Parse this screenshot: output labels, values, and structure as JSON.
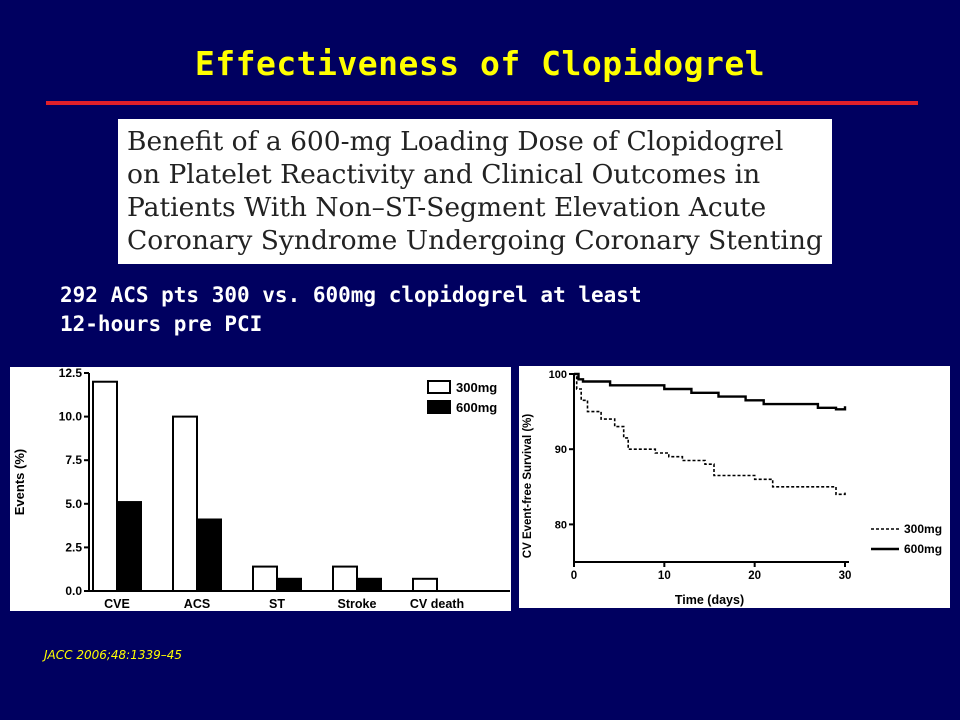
{
  "slide": {
    "title": "Effectiveness of Clopidogrel",
    "article_title_lines": [
      "Benefit of a 600-mg Loading Dose of Clopidogrel",
      "on Platelet Reactivity and Clinical Outcomes in",
      "Patients With Non–ST-Segment Elevation Acute",
      "Coronary Syndrome Undergoing Coronary Stenting"
    ],
    "subtitle_lines": [
      "292 ACS pts 300 vs. 600mg clopidogrel at least",
      "12-hours pre PCI"
    ],
    "citation": "JACC 2006;48:1339–45",
    "colors": {
      "background": "#000060",
      "title": "#FFFF00",
      "rule": "#E0202A",
      "text": "#FFFFFF"
    }
  },
  "chart_data": [
    {
      "type": "bar",
      "title": "",
      "xlabel": "",
      "ylabel": "Events (%)",
      "categories": [
        "CVE",
        "ACS",
        "ST",
        "Stroke",
        "CV death"
      ],
      "series": [
        {
          "name": "300mg",
          "values": [
            12.0,
            10.0,
            1.4,
            1.4,
            0.7
          ],
          "fill": "#FFFFFF"
        },
        {
          "name": "600mg",
          "values": [
            5.1,
            4.1,
            0.7,
            0.7,
            0.0
          ],
          "fill": "#000000"
        }
      ],
      "ylim": [
        0,
        12.5
      ],
      "yticks": [
        "0.0",
        "2.5",
        "5.0",
        "7.5",
        "10.0",
        "12.5"
      ],
      "legend": "top-right",
      "grid": false
    },
    {
      "type": "line",
      "title": "",
      "xlabel": "Time (days)",
      "ylabel": "CV Event-free Survival (%)",
      "xlim": [
        0,
        30
      ],
      "ylim": [
        75,
        100
      ],
      "xticks": [
        "0",
        "10",
        "20",
        "30"
      ],
      "yticks": [
        "80",
        "90",
        "100"
      ],
      "series": [
        {
          "name": "300mg",
          "style": "dashed",
          "step": true,
          "x": [
            0,
            0.3,
            0.8,
            1.5,
            3,
            4.5,
            5.5,
            6,
            9,
            10.5,
            12,
            14.5,
            15.5,
            20,
            22,
            29,
            30
          ],
          "y": [
            100,
            98,
            96.5,
            95,
            94,
            93,
            91.5,
            90,
            89.5,
            89,
            88.5,
            88,
            86.5,
            86,
            85,
            84,
            84.5
          ]
        },
        {
          "name": "600mg",
          "style": "solid",
          "step": true,
          "x": [
            0,
            0.5,
            1,
            4,
            10,
            13,
            16,
            19,
            21,
            24,
            27,
            29,
            30
          ],
          "y": [
            100,
            99.3,
            99,
            98.5,
            98,
            97.5,
            97,
            96.5,
            96,
            96,
            95.5,
            95.3,
            95.7
          ]
        }
      ],
      "legend": "bottom-right",
      "grid": false
    }
  ]
}
